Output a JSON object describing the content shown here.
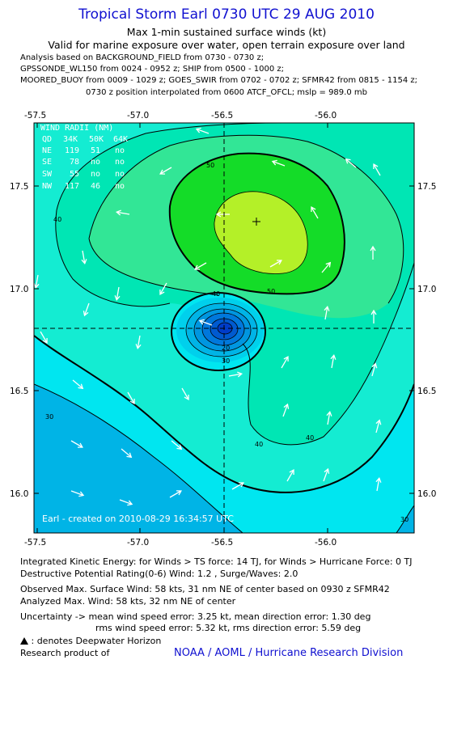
{
  "title": "Tropical Storm Earl 0730 UTC 29 AUG 2010",
  "subtitle1": "Max 1-min sustained surface winds (kt)",
  "subtitle2": "Valid for marine exposure over water, open terrain exposure over land",
  "analysis_lines": [
    "Analysis based on BACKGROUND_FIELD from 0730 - 0730 z;",
    "GPSSONDE_WL150 from 0024 - 0952 z; SHIP from 0500 - 1000 z;",
    "MOORED_BUOY from 0009 - 1029 z; GOES_SWIR from 0702 - 0702 z; SFMR42 from 0815 - 1154 z;",
    "0730 z position interpolated from 0600 ATCF_OFCL; mslp = 989.0 mb"
  ],
  "map": {
    "x_ticks": [
      "-57.5",
      "-57.0",
      "-56.5",
      "-56.0"
    ],
    "y_ticks": [
      "17.5",
      "17.0",
      "16.5",
      "16.0"
    ],
    "contour_labels": [
      "50",
      "40",
      "50",
      "40",
      "20",
      "30",
      "30",
      "40",
      "40",
      "30"
    ],
    "credit": "Earl - created on 2010-08-29 16:34:57 UTC",
    "wind_radii": {
      "header": "WIND RADII (NM)",
      "columns": [
        "QD",
        "34K",
        "50K",
        "64K"
      ],
      "rows": [
        [
          "NE",
          "119",
          "51",
          "no"
        ],
        [
          "SE",
          "78",
          "no",
          "no"
        ],
        [
          "SW",
          "55",
          "no",
          "no"
        ],
        [
          "NW",
          "117",
          "46",
          "no"
        ]
      ]
    }
  },
  "footer": {
    "ike": "Integrated Kinetic Energy:  for Winds > TS force: 14 TJ,  for Winds > Hurricane Force: 0 TJ",
    "dpr": "Destructive Potential Rating(0-6)   Wind: 1.2 , Surge/Waves: 2.0",
    "obs_max": "Observed Max. Surface Wind: 58 kts, 31 nm NE of center based on 0930 z SFMR42",
    "ana_max": "Analyzed Max. Wind: 58 kts, 32 nm NE of center",
    "uncert1": "Uncertainty -> mean wind speed error: 3.25 kt,   mean direction error: 1.30 deg",
    "uncert2": "rms wind speed error: 5.32 kt,   rms direction error: 5.59 deg",
    "legend": ": denotes Deepwater Horizon",
    "research": "Research product of",
    "org": "NOAA / AOML / Hurricane Research Division"
  },
  "colors": {
    "title": "#1010d0",
    "deep_blue": "#00b4e6",
    "cyan": "#00e6f0",
    "light_cyan": "#14ecd2",
    "green_30_40": "#00e6b4",
    "green_40_50": "#32e696",
    "green_50": "#14dc28",
    "yellow_green": "#b4f028"
  }
}
